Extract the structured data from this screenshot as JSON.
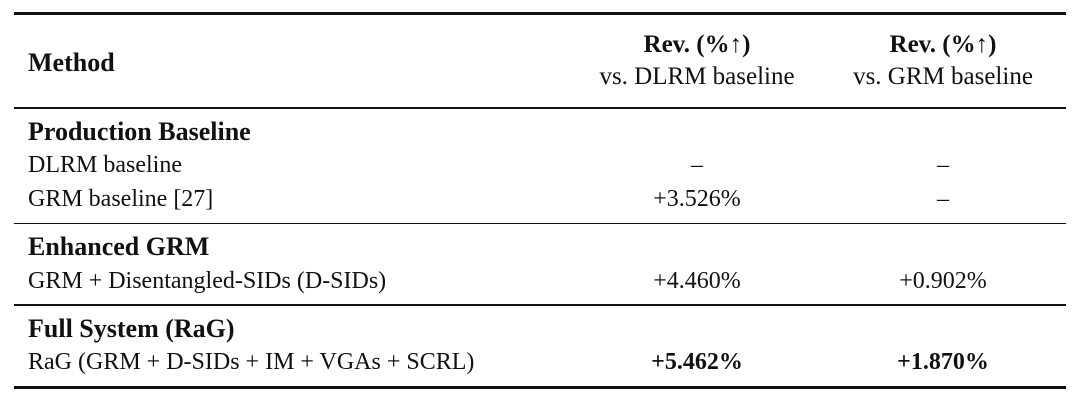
{
  "header": {
    "method": "Method",
    "col2_line1": "Rev. (%↑)",
    "col2_line2": "vs. DLRM baseline",
    "col3_line1": "Rev. (%↑)",
    "col3_line2": "vs. GRM baseline"
  },
  "groups": [
    {
      "title": "Production Baseline",
      "rows": [
        {
          "method": "DLRM baseline",
          "vs_dlrm": "–",
          "vs_grm": "–"
        },
        {
          "method": "GRM baseline [27]",
          "vs_dlrm": "+3.526%",
          "vs_grm": "–"
        }
      ]
    },
    {
      "title": "Enhanced GRM",
      "rows": [
        {
          "method": "GRM + Disentangled-SIDs (D-SIDs)",
          "vs_dlrm": "+4.460%",
          "vs_grm": "+0.902%"
        }
      ]
    },
    {
      "title": "Full System (RaG)",
      "rows": [
        {
          "method": "RaG (GRM + D-SIDs + IM + VGAs + SCRL)",
          "vs_dlrm": "+5.462%",
          "vs_grm": "+1.870%"
        }
      ]
    }
  ]
}
